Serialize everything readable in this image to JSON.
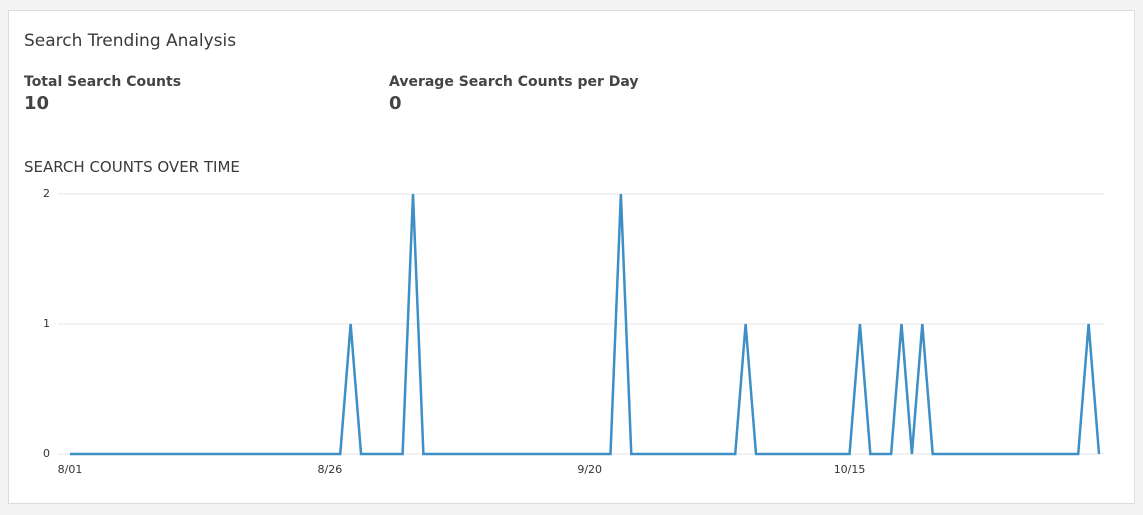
{
  "header": {
    "title": "Search Trending Analysis"
  },
  "stats": [
    {
      "label": "Total Search Counts",
      "value": "10"
    },
    {
      "label": "Average Search Counts per Day",
      "value": "0"
    }
  ],
  "chart_data": {
    "type": "line",
    "title": "SEARCH COUNTS OVER TIME",
    "color": "#3d8fc6",
    "grid": true,
    "ylim": [
      0,
      2
    ],
    "yticks": [
      0,
      1,
      2
    ],
    "categories": [
      "8/01",
      null,
      null,
      null,
      null,
      null,
      null,
      null,
      null,
      null,
      null,
      null,
      null,
      null,
      null,
      null,
      null,
      null,
      null,
      null,
      null,
      null,
      null,
      null,
      null,
      "8/26",
      null,
      null,
      null,
      null,
      null,
      null,
      null,
      null,
      null,
      null,
      null,
      null,
      null,
      null,
      null,
      null,
      null,
      null,
      null,
      null,
      null,
      null,
      null,
      null,
      "9/20",
      null,
      null,
      null,
      null,
      null,
      null,
      null,
      null,
      null,
      null,
      null,
      null,
      null,
      null,
      null,
      null,
      null,
      null,
      null,
      null,
      null,
      null,
      null,
      null,
      "10/15",
      null,
      null,
      null,
      null,
      null,
      null,
      null,
      null,
      null,
      null,
      null,
      null,
      null,
      null,
      null,
      null,
      null,
      null,
      null,
      null,
      null,
      null,
      null,
      null
    ],
    "values": [
      0,
      0,
      0,
      0,
      0,
      0,
      0,
      0,
      0,
      0,
      0,
      0,
      0,
      0,
      0,
      0,
      0,
      0,
      0,
      0,
      0,
      0,
      0,
      0,
      0,
      0,
      0,
      1,
      0,
      0,
      0,
      0,
      0,
      2,
      0,
      0,
      0,
      0,
      0,
      0,
      0,
      0,
      0,
      0,
      0,
      0,
      0,
      0,
      0,
      0,
      0,
      0,
      0,
      2,
      0,
      0,
      0,
      0,
      0,
      0,
      0,
      0,
      0,
      0,
      0,
      1,
      0,
      0,
      0,
      0,
      0,
      0,
      0,
      0,
      0,
      0,
      1,
      0,
      0,
      0,
      1,
      0,
      1,
      0,
      0,
      0,
      0,
      0,
      0,
      0,
      0,
      0,
      0,
      0,
      0,
      0,
      0,
      0,
      1,
      0
    ]
  }
}
